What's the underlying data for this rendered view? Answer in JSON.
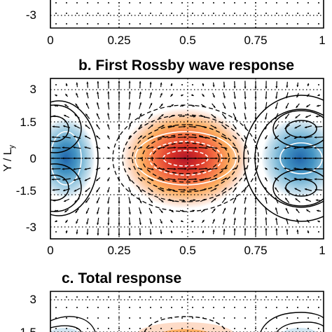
{
  "chart_data": [
    {
      "type": "contour",
      "panel": "a",
      "title": "",
      "xlabel": "",
      "ylabel": "",
      "xlim": [
        0,
        1
      ],
      "x_ticks": [
        "0",
        "0.25",
        "0.5",
        "0.75",
        "1"
      ],
      "visible_y_ticks": [
        "-3"
      ],
      "grid": "dotted"
    },
    {
      "type": "contour",
      "panel": "b",
      "title": "b. First Rossby wave response",
      "xlabel": "",
      "ylabel": "Y / L",
      "ylabel_sub": "y",
      "xlim": [
        0,
        1
      ],
      "ylim": [
        -3.5,
        3.5
      ],
      "x_ticks": [
        "0",
        "0.25",
        "0.5",
        "0.75",
        "1"
      ],
      "y_ticks": [
        "3",
        "1.5",
        "0",
        "-1.5",
        "-3"
      ],
      "grid": "dotted",
      "shading_colors": [
        "#2166ac",
        "#67a9cf",
        "#d1e5f0",
        "#fddbc7",
        "#fdae61",
        "#f46d43",
        "#d73027",
        "#b2182b"
      ],
      "features": [
        {
          "sign": "negative",
          "x": 0.06,
          "y": 0,
          "rx": 0.07,
          "ry": 1.35
        },
        {
          "sign": "positive",
          "x": 0.5,
          "y": 0,
          "rx": 0.19,
          "ry": 1.7
        },
        {
          "sign": "negative",
          "x": 0.92,
          "y": 0,
          "rx": 0.11,
          "ry": 1.4
        }
      ]
    },
    {
      "type": "contour",
      "panel": "c",
      "title": "c. Total response",
      "xlabel": "",
      "ylabel": "",
      "xlim": [
        0,
        1
      ],
      "visible_y_ticks": [
        "3",
        "1.5"
      ],
      "grid": "dotted"
    }
  ]
}
